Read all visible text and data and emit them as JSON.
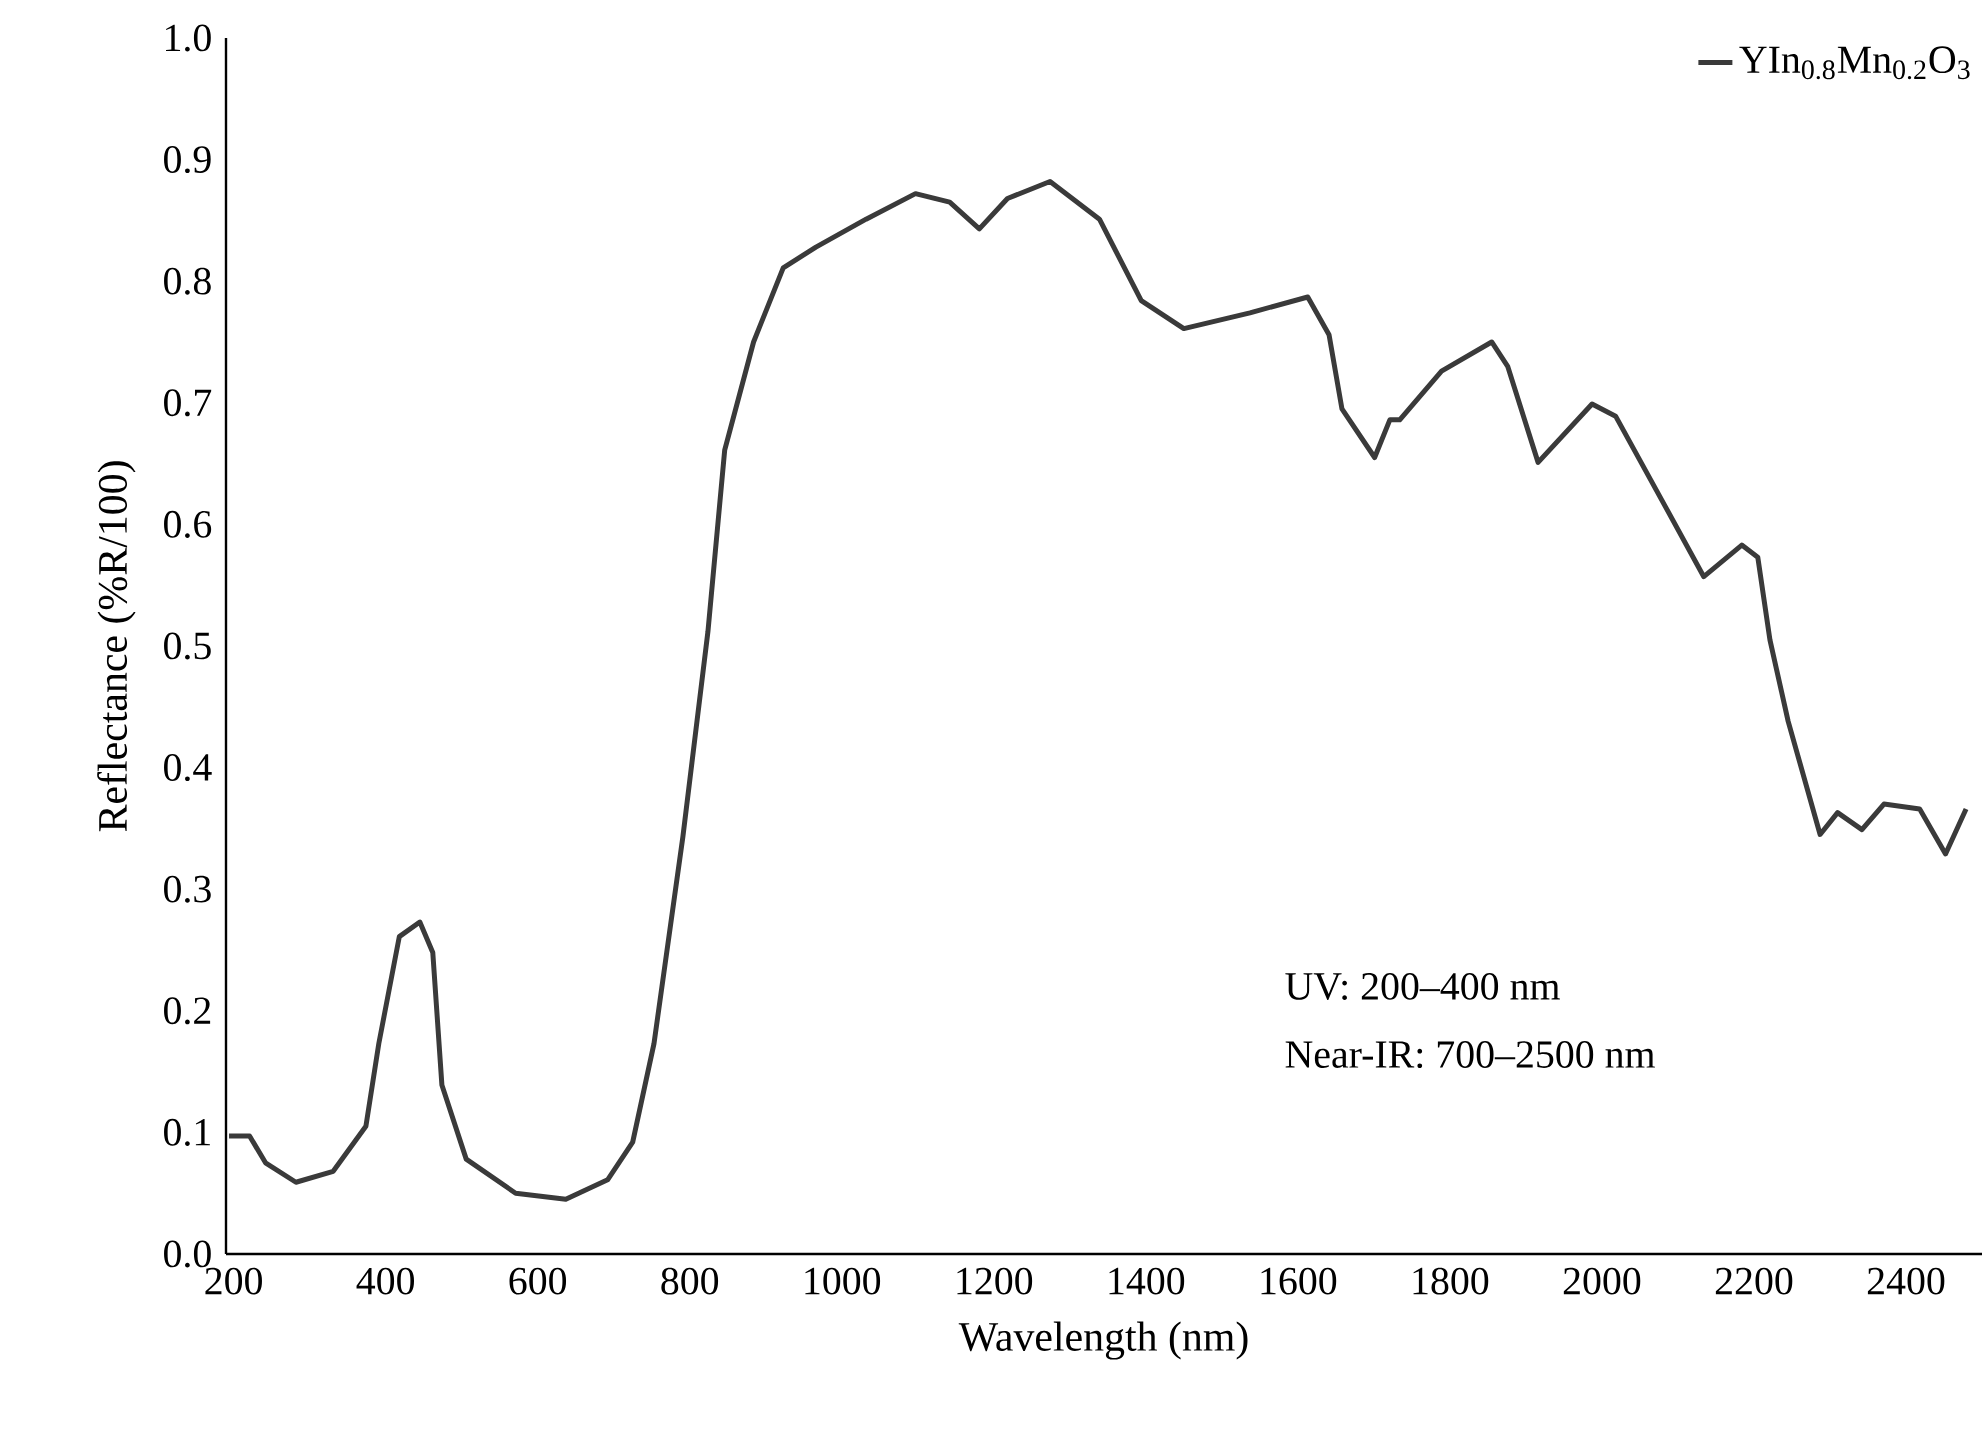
{
  "chart_data": {
    "type": "line",
    "xlabel": "Wavelength (nm)",
    "ylabel": "Reflectance (%R/100)",
    "x": [
      194,
      221,
      242,
      282,
      331,
      374,
      391,
      418,
      445,
      462,
      474,
      506,
      571,
      637,
      692,
      725,
      753,
      791,
      824,
      846,
      884,
      923,
      966,
      1032,
      1097,
      1142,
      1181,
      1218,
      1274,
      1339,
      1394,
      1450,
      1537,
      1613,
      1641,
      1658,
      1701,
      1721,
      1734,
      1789,
      1855,
      1876,
      1916,
      1987,
      2018,
      2084,
      2134,
      2184,
      2205,
      2221,
      2245,
      2287,
      2310,
      2342,
      2371,
      2418,
      2452,
      2479
    ],
    "series": [
      {
        "name": "YIn$_{0.8}$Mn$_{0.2}$O$_{3}$",
        "color": "#3a3a3a",
        "values": [
          0.097,
          0.097,
          0.075,
          0.059,
          0.068,
          0.105,
          0.173,
          0.261,
          0.273,
          0.248,
          0.139,
          0.078,
          0.05,
          0.045,
          0.061,
          0.092,
          0.173,
          0.343,
          0.512,
          0.661,
          0.75,
          0.811,
          0.828,
          0.851,
          0.872,
          0.865,
          0.843,
          0.868,
          0.882,
          0.851,
          0.784,
          0.761,
          0.774,
          0.787,
          0.756,
          0.695,
          0.655,
          0.686,
          0.686,
          0.726,
          0.75,
          0.73,
          0.651,
          0.699,
          0.689,
          0.614,
          0.557,
          0.583,
          0.573,
          0.505,
          0.438,
          0.345,
          0.363,
          0.349,
          0.37,
          0.366,
          0.329,
          0.366
        ]
      }
    ],
    "xlim": [
      190,
      2500
    ],
    "ylim": [
      0,
      1
    ],
    "xticks": [
      200,
      400,
      600,
      800,
      1000,
      1200,
      1400,
      1600,
      1800,
      2000,
      2200,
      2400
    ],
    "yticks": [
      {
        "value": 0,
        "label": "0.0"
      },
      0.1,
      0.2,
      0.3,
      0.4,
      0.5,
      0.6,
      0.7,
      0.8,
      0.9,
      {
        "value": 1,
        "label": "1.0"
      }
    ],
    "annotations": [
      "UV: 200–400 nm",
      "Near-IR: 700–2500 nm"
    ],
    "grid": false,
    "legend": "top right",
    "marker": "none",
    "line_style": "solid"
  }
}
